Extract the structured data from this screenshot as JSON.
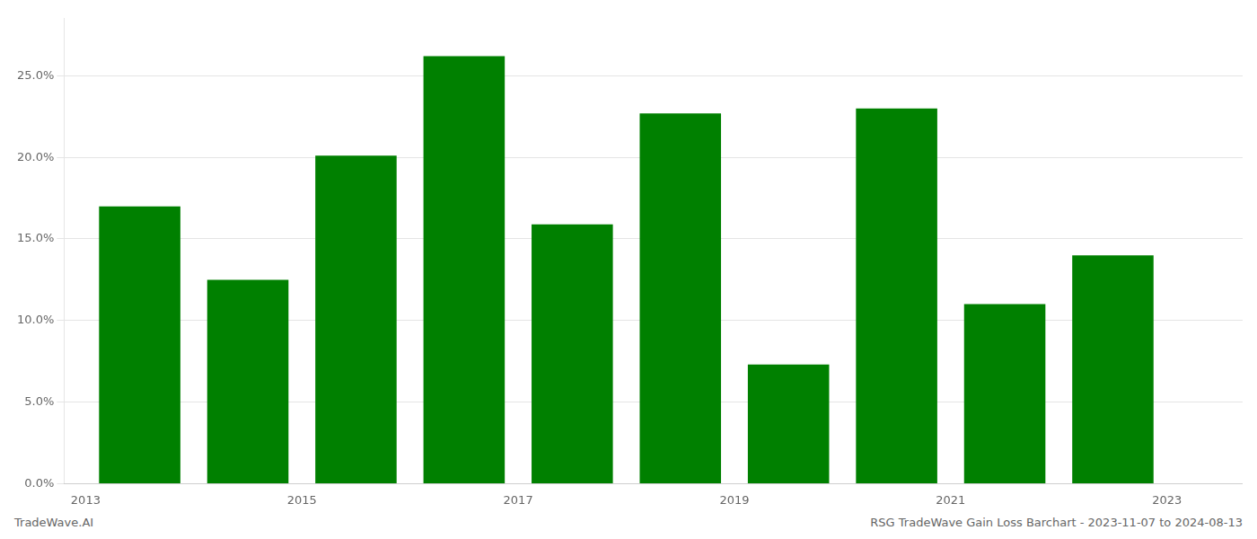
{
  "chart_data": {
    "type": "bar",
    "x": [
      2013.5,
      2014.5,
      2015.5,
      2016.5,
      2017.5,
      2018.5,
      2019.5,
      2020.5,
      2021.5,
      2022.5
    ],
    "values": [
      0.17,
      0.125,
      0.201,
      0.262,
      0.159,
      0.227,
      0.073,
      0.23,
      0.11,
      0.14
    ],
    "color": "#008000",
    "xlim": [
      2012.8,
      2023.7
    ],
    "xticks": [
      2013,
      2015,
      2017,
      2019,
      2021,
      2023
    ],
    "ylim": [
      0.0,
      0.285
    ],
    "yticks": [
      {
        "value": 0.0,
        "label": "0.0%"
      },
      {
        "value": 0.05,
        "label": "5.0%"
      },
      {
        "value": 0.1,
        "label": "10.0%"
      },
      {
        "value": 0.15,
        "label": "15.0%"
      },
      {
        "value": 0.2,
        "label": "20.0%"
      },
      {
        "value": 0.25,
        "label": "25.0%"
      }
    ],
    "grid": true,
    "annotations": [
      "TradeWave.AI",
      "RSG TradeWave Gain Loss Barchart - 2023-11-07 to 2024-08-13"
    ]
  }
}
